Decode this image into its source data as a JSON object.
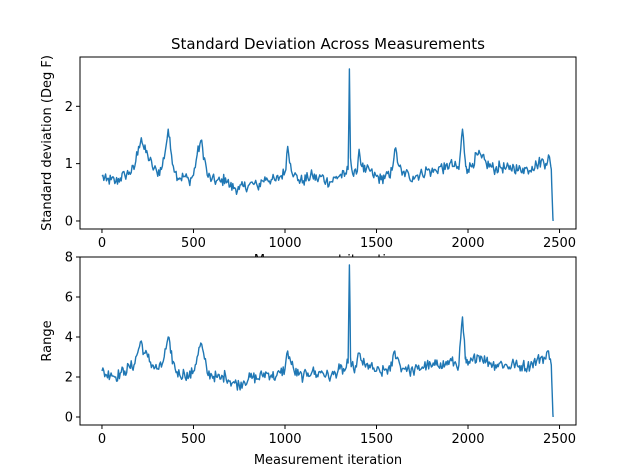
{
  "chart_data": [
    {
      "type": "line",
      "title": "Standard Deviation Across Measurements",
      "xlabel": "Measurement iteration",
      "ylabel": "Standard deviation (Deg F)",
      "xlim": [
        -120,
        2590
      ],
      "ylim": [
        -0.14,
        2.86
      ],
      "xticks": [
        0,
        500,
        1000,
        1500,
        2000,
        2500
      ],
      "yticks": [
        0,
        1,
        2
      ],
      "grid": false,
      "color": "#1f77b4",
      "series": [
        {
          "x": [
            0,
            25,
            50,
            75,
            100,
            125,
            150,
            175,
            200,
            215,
            230,
            250,
            275,
            300,
            325,
            350,
            362,
            375,
            400,
            425,
            450,
            475,
            500,
            520,
            540,
            560,
            575,
            600,
            625,
            650,
            675,
            700,
            725,
            750,
            775,
            800,
            825,
            850,
            875,
            900,
            925,
            950,
            975,
            1000,
            1015,
            1030,
            1050,
            1075,
            1100,
            1125,
            1150,
            1175,
            1200,
            1225,
            1250,
            1275,
            1300,
            1325,
            1345,
            1352,
            1358,
            1365,
            1375,
            1390,
            1405,
            1420,
            1440,
            1460,
            1480,
            1500,
            1525,
            1550,
            1575,
            1600,
            1625,
            1640,
            1660,
            1680,
            1700,
            1725,
            1750,
            1775,
            1800,
            1825,
            1850,
            1875,
            1900,
            1925,
            1950,
            1970,
            1985,
            1990,
            2000,
            2025,
            2050,
            2075,
            2100,
            2125,
            2150,
            2175,
            2200,
            2225,
            2250,
            2275,
            2300,
            2325,
            2350,
            2375,
            2400,
            2425,
            2440,
            2450,
            2455,
            2460,
            2463,
            2465
          ],
          "values": [
            0.78,
            0.7,
            0.72,
            0.68,
            0.75,
            0.8,
            0.85,
            0.9,
            1.3,
            1.45,
            1.25,
            1.15,
            0.95,
            0.85,
            0.9,
            1.3,
            1.6,
            1.25,
            0.85,
            0.75,
            0.78,
            0.7,
            0.8,
            1.15,
            1.4,
            1.1,
            0.8,
            0.72,
            0.7,
            0.68,
            0.75,
            0.6,
            0.58,
            0.55,
            0.6,
            0.62,
            0.65,
            0.6,
            0.7,
            0.75,
            0.72,
            0.7,
            0.78,
            0.85,
            1.3,
            1.0,
            0.8,
            0.72,
            0.7,
            0.75,
            0.8,
            0.72,
            0.78,
            0.7,
            0.68,
            0.75,
            0.8,
            0.78,
            0.9,
            2.65,
            1.1,
            0.9,
            0.78,
            0.82,
            1.25,
            0.95,
            0.85,
            0.9,
            0.8,
            0.78,
            0.72,
            0.8,
            0.75,
            1.25,
            0.95,
            0.8,
            0.85,
            0.75,
            0.78,
            0.8,
            0.82,
            0.9,
            0.85,
            0.88,
            0.95,
            0.9,
            1.0,
            0.95,
            0.9,
            1.6,
            1.05,
            0.95,
            0.9,
            1.0,
            1.15,
            1.1,
            1.0,
            0.95,
            0.9,
            0.95,
            0.92,
            0.9,
            0.95,
            0.88,
            0.92,
            0.9,
            0.95,
            0.98,
            1.05,
            1.0,
            1.15,
            1.0,
            0.9,
            0.4,
            0.1,
            0.0
          ]
        }
      ]
    },
    {
      "type": "line",
      "title": "",
      "xlabel": "Measurement iteration",
      "ylabel": "Range",
      "xlim": [
        -120,
        2590
      ],
      "ylim": [
        -0.4,
        8.0
      ],
      "xticks": [
        0,
        500,
        1000,
        1500,
        2000,
        2500
      ],
      "yticks": [
        0,
        2,
        4,
        6,
        8
      ],
      "grid": false,
      "color": "#1f77b4",
      "series": [
        {
          "x": [
            0,
            25,
            50,
            75,
            100,
            125,
            150,
            175,
            200,
            215,
            230,
            250,
            275,
            300,
            325,
            350,
            362,
            375,
            400,
            425,
            450,
            475,
            500,
            520,
            540,
            560,
            575,
            600,
            625,
            650,
            675,
            700,
            725,
            750,
            775,
            800,
            825,
            850,
            875,
            900,
            925,
            950,
            975,
            1000,
            1015,
            1030,
            1050,
            1075,
            1100,
            1125,
            1150,
            1175,
            1200,
            1225,
            1250,
            1275,
            1300,
            1325,
            1345,
            1352,
            1358,
            1365,
            1375,
            1390,
            1405,
            1420,
            1440,
            1460,
            1480,
            1500,
            1525,
            1550,
            1575,
            1600,
            1625,
            1640,
            1660,
            1680,
            1700,
            1725,
            1750,
            1775,
            1800,
            1825,
            1850,
            1875,
            1900,
            1925,
            1950,
            1970,
            1985,
            1990,
            2000,
            2025,
            2050,
            2075,
            2100,
            2125,
            2150,
            2175,
            2200,
            2225,
            2250,
            2275,
            2300,
            2325,
            2350,
            2375,
            2400,
            2425,
            2440,
            2450,
            2455,
            2460,
            2463,
            2465
          ],
          "values": [
            2.3,
            2.1,
            2.2,
            2.0,
            2.2,
            2.3,
            2.5,
            2.6,
            3.4,
            3.8,
            3.2,
            3.0,
            2.6,
            2.4,
            2.5,
            3.4,
            4.0,
            3.2,
            2.4,
            2.1,
            2.2,
            2.0,
            2.3,
            3.0,
            3.7,
            2.9,
            2.2,
            2.1,
            2.0,
            1.9,
            2.1,
            1.8,
            1.7,
            1.6,
            1.8,
            1.9,
            2.0,
            1.9,
            2.1,
            2.2,
            2.1,
            2.0,
            2.2,
            2.4,
            3.3,
            2.8,
            2.3,
            2.1,
            2.0,
            2.2,
            2.3,
            2.1,
            2.3,
            2.1,
            2.0,
            2.2,
            2.4,
            2.3,
            2.7,
            7.6,
            3.0,
            2.6,
            2.4,
            2.5,
            3.2,
            2.8,
            2.5,
            2.6,
            2.4,
            2.3,
            2.2,
            2.4,
            2.3,
            3.3,
            2.7,
            2.4,
            2.5,
            2.3,
            2.3,
            2.4,
            2.5,
            2.6,
            2.5,
            2.6,
            2.7,
            2.6,
            2.8,
            2.7,
            2.6,
            5.0,
            2.9,
            2.7,
            2.6,
            2.8,
            3.1,
            3.0,
            2.8,
            2.7,
            2.6,
            2.7,
            2.6,
            2.5,
            2.7,
            2.5,
            2.6,
            2.5,
            2.7,
            2.8,
            3.0,
            2.9,
            3.3,
            2.9,
            2.6,
            1.2,
            0.3,
            0.0
          ]
        }
      ]
    }
  ]
}
